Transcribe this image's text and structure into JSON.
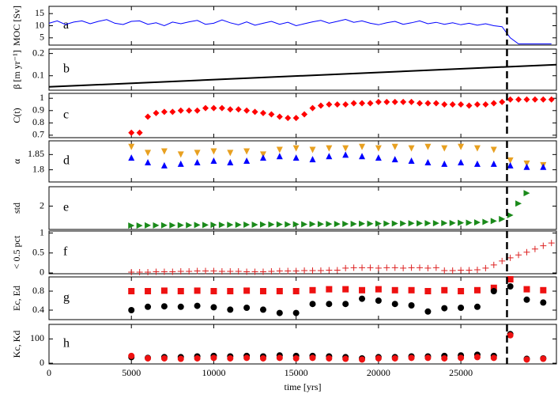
{
  "chart_data": [
    {
      "type": "line",
      "annotation": "a",
      "ylabel": "MOC [Sv]",
      "xlim": [
        0,
        30800
      ],
      "ylim": [
        2,
        18
      ],
      "yticks": [
        5,
        10,
        15
      ],
      "vline": 27800,
      "series": [
        {
          "color": "#0000ff",
          "marker": "line",
          "x": [
            0,
            500,
            1000,
            1500,
            2000,
            2500,
            3000,
            3500,
            4000,
            4500,
            5000,
            5500,
            6000,
            6500,
            7000,
            7500,
            8000,
            8500,
            9000,
            9500,
            10000,
            10500,
            11000,
            11500,
            12000,
            12500,
            13000,
            13500,
            14000,
            14500,
            15000,
            15500,
            16000,
            16500,
            17000,
            17500,
            18000,
            18500,
            19000,
            19500,
            20000,
            20500,
            21000,
            21500,
            22000,
            22500,
            23000,
            23500,
            24000,
            24500,
            25000,
            25500,
            26000,
            26500,
            27000,
            27500,
            28000,
            28500,
            29000,
            29500,
            30000,
            30500
          ],
          "values": [
            11,
            12,
            10.5,
            11.5,
            12,
            10.8,
            11.8,
            12.5,
            11,
            10.5,
            11.8,
            12,
            10.6,
            11.2,
            10,
            11.5,
            10.8,
            11.6,
            12.2,
            10.6,
            11,
            12.4,
            11.2,
            10.4,
            11.6,
            10.2,
            11,
            11.8,
            10.6,
            11.4,
            10,
            10.8,
            11.6,
            12.2,
            11,
            11.8,
            12.6,
            11.4,
            12,
            11,
            10.4,
            11.2,
            11.8,
            10.6,
            11.2,
            12,
            10.8,
            11.4,
            10.6,
            11.2,
            10.4,
            11,
            10.2,
            10.8,
            10,
            9.6,
            5,
            2.5,
            2.5,
            2.5,
            2.5,
            2.5
          ]
        }
      ]
    },
    {
      "type": "line",
      "annotation": "b",
      "ylabel": "β [m yr⁻¹]",
      "xlim": [
        0,
        30800
      ],
      "ylim": [
        0.035,
        0.22
      ],
      "yticks": [
        0.1,
        0.2
      ],
      "vline": 27800,
      "series": [
        {
          "color": "#000000",
          "marker": "line",
          "x": [
            0,
            30800
          ],
          "values": [
            0.05,
            0.15
          ]
        }
      ]
    },
    {
      "type": "scatter",
      "annotation": "c",
      "ylabel": "C(t)",
      "xlim": [
        0,
        30800
      ],
      "ylim": [
        0.68,
        1.04
      ],
      "yticks": [
        0.7,
        0.8,
        0.9,
        1
      ],
      "vline": 27800,
      "series": [
        {
          "color": "#ff0000",
          "marker": "diamond",
          "x": [
            5000,
            5500,
            6000,
            6500,
            7000,
            7500,
            8000,
            8500,
            9000,
            9500,
            10000,
            10500,
            11000,
            11500,
            12000,
            12500,
            13000,
            13500,
            14000,
            14500,
            15000,
            15500,
            16000,
            16500,
            17000,
            17500,
            18000,
            18500,
            19000,
            19500,
            20000,
            20500,
            21000,
            21500,
            22000,
            22500,
            23000,
            23500,
            24000,
            24500,
            25000,
            25500,
            26000,
            26500,
            27000,
            27500,
            28000,
            28500,
            29000,
            29500,
            30000,
            30500
          ],
          "values": [
            0.72,
            0.72,
            0.85,
            0.88,
            0.89,
            0.89,
            0.9,
            0.9,
            0.9,
            0.92,
            0.92,
            0.92,
            0.91,
            0.91,
            0.9,
            0.89,
            0.88,
            0.87,
            0.85,
            0.84,
            0.84,
            0.87,
            0.92,
            0.94,
            0.95,
            0.95,
            0.95,
            0.96,
            0.96,
            0.96,
            0.97,
            0.97,
            0.97,
            0.97,
            0.97,
            0.96,
            0.96,
            0.96,
            0.95,
            0.95,
            0.95,
            0.94,
            0.95,
            0.95,
            0.96,
            0.97,
            0.99,
            0.99,
            0.99,
            0.99,
            0.99,
            0.99
          ]
        }
      ]
    },
    {
      "type": "scatter",
      "annotation": "d",
      "ylabel": "α",
      "xlim": [
        0,
        30800
      ],
      "ylim": [
        1.76,
        1.895
      ],
      "yticks": [
        1.8,
        1.85
      ],
      "vline": 27800,
      "series": [
        {
          "color": "#e8a020",
          "marker": "triangle-down",
          "x": [
            5000,
            6000,
            7000,
            8000,
            9000,
            10000,
            11000,
            12000,
            13000,
            14000,
            15000,
            16000,
            17000,
            18000,
            19000,
            20000,
            21000,
            22000,
            23000,
            24000,
            25000,
            26000,
            27000,
            28000,
            29000,
            30000
          ],
          "values": [
            1.875,
            1.855,
            1.86,
            1.85,
            1.855,
            1.86,
            1.855,
            1.86,
            1.85,
            1.865,
            1.87,
            1.865,
            1.87,
            1.87,
            1.875,
            1.87,
            1.875,
            1.87,
            1.875,
            1.87,
            1.875,
            1.87,
            1.865,
            1.83,
            1.82,
            1.815
          ]
        },
        {
          "color": "#0000ff",
          "marker": "triangle-up",
          "x": [
            5000,
            6000,
            7000,
            8000,
            9000,
            10000,
            11000,
            12000,
            13000,
            14000,
            15000,
            16000,
            17000,
            18000,
            19000,
            20000,
            21000,
            22000,
            23000,
            24000,
            25000,
            26000,
            27000,
            28000,
            29000,
            30000
          ],
          "values": [
            1.84,
            1.825,
            1.815,
            1.82,
            1.825,
            1.83,
            1.825,
            1.83,
            1.84,
            1.845,
            1.84,
            1.835,
            1.845,
            1.85,
            1.845,
            1.84,
            1.835,
            1.83,
            1.825,
            1.82,
            1.825,
            1.82,
            1.82,
            1.815,
            1.81,
            1.81
          ]
        }
      ]
    },
    {
      "type": "scatter",
      "annotation": "e",
      "ylabel": "std",
      "xlim": [
        0,
        30800
      ],
      "ylim": [
        0.2,
        3.5
      ],
      "yticks": [
        2
      ],
      "vline": 27800,
      "series": [
        {
          "color": "#1a8a1a",
          "marker": "triangle-right",
          "x": [
            5000,
            5500,
            6000,
            6500,
            7000,
            7500,
            8000,
            8500,
            9000,
            9500,
            10000,
            10500,
            11000,
            11500,
            12000,
            12500,
            13000,
            13500,
            14000,
            14500,
            15000,
            15500,
            16000,
            16500,
            17000,
            17500,
            18000,
            18500,
            19000,
            19500,
            20000,
            20500,
            21000,
            21500,
            22000,
            22500,
            23000,
            23500,
            24000,
            24500,
            25000,
            25500,
            26000,
            26500,
            27000,
            27500,
            28000,
            28500,
            29000
          ],
          "values": [
            0.5,
            0.5,
            0.51,
            0.51,
            0.52,
            0.52,
            0.53,
            0.53,
            0.54,
            0.54,
            0.55,
            0.55,
            0.56,
            0.56,
            0.57,
            0.57,
            0.58,
            0.58,
            0.59,
            0.59,
            0.6,
            0.6,
            0.61,
            0.61,
            0.62,
            0.62,
            0.63,
            0.63,
            0.64,
            0.64,
            0.65,
            0.65,
            0.66,
            0.66,
            0.67,
            0.67,
            0.68,
            0.68,
            0.69,
            0.7,
            0.71,
            0.72,
            0.74,
            0.78,
            0.85,
            1.0,
            1.3,
            2.2,
            3.0
          ]
        }
      ]
    },
    {
      "type": "scatter",
      "annotation": "f",
      "ylabel": "< 0.5 pct",
      "xlim": [
        0,
        30800
      ],
      "ylim": [
        -0.02,
        1.05
      ],
      "yticks": [
        0,
        0.5,
        1
      ],
      "vline": 27800,
      "series": [
        {
          "color": "#dd2222",
          "marker": "plus",
          "x": [
            5000,
            5500,
            6000,
            6500,
            7000,
            7500,
            8000,
            8500,
            9000,
            9500,
            10000,
            10500,
            11000,
            11500,
            12000,
            12500,
            13000,
            13500,
            14000,
            14500,
            15000,
            15500,
            16000,
            16500,
            17000,
            17500,
            18000,
            18500,
            19000,
            19500,
            20000,
            20500,
            21000,
            21500,
            22000,
            22500,
            23000,
            23500,
            24000,
            24500,
            25000,
            25500,
            26000,
            26500,
            27000,
            27500,
            28000,
            28500,
            29000,
            29500,
            30000,
            30500
          ],
          "values": [
            0.02,
            0.02,
            0.02,
            0.03,
            0.03,
            0.03,
            0.04,
            0.04,
            0.05,
            0.05,
            0.05,
            0.04,
            0.04,
            0.04,
            0.03,
            0.03,
            0.03,
            0.04,
            0.05,
            0.05,
            0.05,
            0.06,
            0.06,
            0.06,
            0.07,
            0.07,
            0.12,
            0.13,
            0.13,
            0.13,
            0.12,
            0.13,
            0.13,
            0.12,
            0.13,
            0.13,
            0.12,
            0.13,
            0.06,
            0.06,
            0.07,
            0.07,
            0.08,
            0.12,
            0.2,
            0.3,
            0.38,
            0.45,
            0.52,
            0.6,
            0.68,
            0.75
          ]
        }
      ]
    },
    {
      "type": "scatter",
      "annotation": "g",
      "ylabel": "Ec, Ed",
      "xlim": [
        0,
        30800
      ],
      "ylim": [
        0.2,
        1.1
      ],
      "yticks": [
        0.4,
        0.8
      ],
      "vline": 27800,
      "series": [
        {
          "color": "#ee1111",
          "marker": "square",
          "x": [
            5000,
            6000,
            7000,
            8000,
            9000,
            10000,
            11000,
            12000,
            13000,
            14000,
            15000,
            16000,
            17000,
            18000,
            19000,
            20000,
            21000,
            22000,
            23000,
            24000,
            25000,
            26000,
            27000,
            28000,
            29000,
            30000
          ],
          "values": [
            0.8,
            0.8,
            0.81,
            0.8,
            0.81,
            0.8,
            0.8,
            0.81,
            0.8,
            0.8,
            0.8,
            0.82,
            0.84,
            0.84,
            0.82,
            0.84,
            0.82,
            0.82,
            0.8,
            0.82,
            0.8,
            0.82,
            0.87,
            1.05,
            0.84,
            0.82
          ]
        },
        {
          "color": "#000000",
          "marker": "circle",
          "x": [
            5000,
            6000,
            7000,
            8000,
            9000,
            10000,
            11000,
            12000,
            13000,
            14000,
            15000,
            16000,
            17000,
            18000,
            19000,
            20000,
            21000,
            22000,
            23000,
            24000,
            25000,
            26000,
            27000,
            28000,
            29000,
            30000
          ],
          "values": [
            0.4,
            0.47,
            0.48,
            0.47,
            0.49,
            0.46,
            0.41,
            0.45,
            0.41,
            0.34,
            0.34,
            0.53,
            0.53,
            0.53,
            0.64,
            0.6,
            0.53,
            0.5,
            0.37,
            0.44,
            0.45,
            0.47,
            0.8,
            0.9,
            0.62,
            0.56
          ]
        }
      ]
    },
    {
      "type": "scatter",
      "annotation": "h",
      "ylabel": "Kc, Kd",
      "xlabel": "time [yrs]",
      "xlim": [
        0,
        30800
      ],
      "ylim": [
        -3,
        160
      ],
      "yticks": [
        0,
        100
      ],
      "xticks": [
        0,
        5000,
        10000,
        15000,
        20000,
        25000
      ],
      "vline": 27800,
      "series": [
        {
          "color": "#000000",
          "marker": "circle",
          "x": [
            5000,
            6000,
            7000,
            8000,
            9000,
            10000,
            11000,
            12000,
            13000,
            14000,
            15000,
            16000,
            17000,
            18000,
            19000,
            20000,
            21000,
            22000,
            23000,
            24000,
            25000,
            26000,
            27000,
            28000,
            29000,
            30000
          ],
          "values": [
            25,
            22,
            25,
            25,
            28,
            30,
            28,
            30,
            28,
            32,
            30,
            30,
            28,
            25,
            20,
            25,
            25,
            28,
            28,
            30,
            32,
            35,
            30,
            120,
            18,
            20
          ]
        },
        {
          "color": "#ee1111",
          "marker": "circle",
          "x": [
            5000,
            6000,
            7000,
            8000,
            9000,
            10000,
            11000,
            12000,
            13000,
            14000,
            15000,
            16000,
            17000,
            18000,
            19000,
            20000,
            21000,
            22000,
            23000,
            24000,
            25000,
            26000,
            27000,
            28000,
            29000,
            30000
          ],
          "values": [
            30,
            20,
            20,
            18,
            20,
            22,
            20,
            22,
            20,
            22,
            20,
            22,
            20,
            18,
            15,
            20,
            20,
            22,
            22,
            20,
            22,
            25,
            22,
            115,
            15,
            18
          ]
        }
      ]
    }
  ]
}
